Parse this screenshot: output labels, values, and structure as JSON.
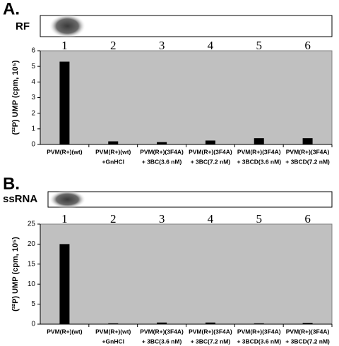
{
  "chart_data": [
    {
      "type": "bar",
      "panel_label": "A.",
      "gel_label": "RF",
      "lane_labels": [
        "1",
        "2",
        "3",
        "4",
        "5",
        "6"
      ],
      "y_label": "(³²P) UMP (cpm, 10⁵)",
      "categories": [
        [
          "PVM(R+)(wt)"
        ],
        [
          "PVM(R+)(wt)",
          "+GnHCl"
        ],
        [
          "PVM(R+)(3F4A)",
          "+ 3BC(3.6 nM)"
        ],
        [
          "PVM(R+)(3F4A)",
          "+ 3BC(7.2 nM)"
        ],
        [
          "PVM(R+)(3F4A)",
          "+ 3BCD(3.6 nM)"
        ],
        [
          "PVM(R+)(3F4A)",
          "+ 3BCD(7.2 nM)"
        ]
      ],
      "values": [
        5.3,
        0.2,
        0.15,
        0.25,
        0.4,
        0.4
      ],
      "color": "#000000",
      "plot_background": "#c0c0c0",
      "ylim": [
        0,
        6
      ],
      "yticks": [
        0,
        1,
        2,
        3,
        4,
        5,
        6
      ],
      "grid": false
    },
    {
      "type": "bar",
      "panel_label": "B.",
      "gel_label": "ssRNA",
      "lane_labels": [
        "1",
        "2",
        "3",
        "4",
        "5",
        "6"
      ],
      "y_label": "(³²P) UMP (cpm, 10⁵)",
      "categories": [
        [
          "PVM(R+)(wt)"
        ],
        [
          "PVM(R+)(wt)",
          "+GnHCl"
        ],
        [
          "PVM(R+)(3F4A)",
          "+ 3BC(3.6 nM)"
        ],
        [
          "PVM(R+)(3F4A)",
          "+ 3BC(7.2 nM)"
        ],
        [
          "PVM(R+)(3F4A)",
          "+ 3BCD(3.6 nM)"
        ],
        [
          "PVM(R+)(3F4A)",
          "+ 3BCD(7.2 nM)"
        ]
      ],
      "values": [
        20,
        0.2,
        0.4,
        0.4,
        0.2,
        0.3
      ],
      "color": "#000000",
      "plot_background": "#c0c0c0",
      "ylim": [
        0,
        25
      ],
      "yticks": [
        0,
        5,
        10,
        15,
        20,
        25
      ],
      "grid": false
    }
  ]
}
